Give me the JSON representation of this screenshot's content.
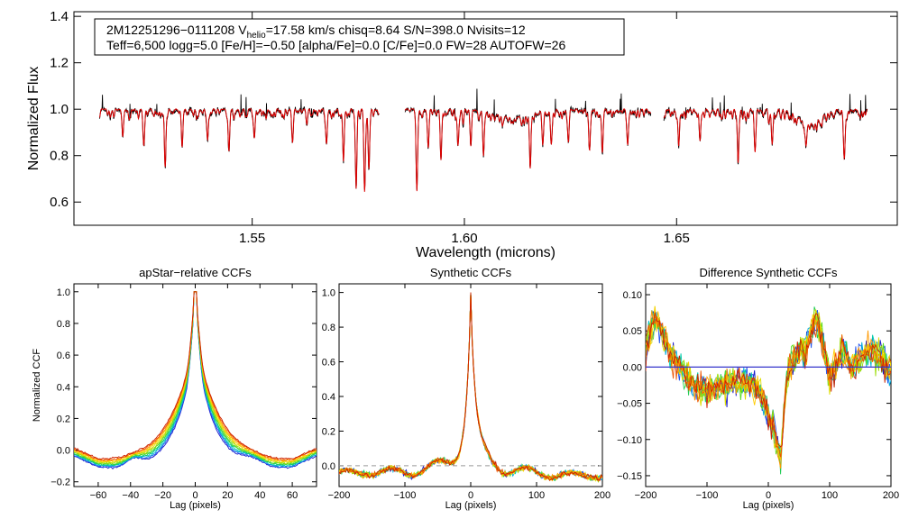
{
  "colors": {
    "observed": "#000000",
    "model": "#dd0000",
    "zero_line": "#3333cc",
    "dashed": "#999999",
    "visit_palette": [
      "#1a1acc",
      "#2255ee",
      "#00aadd",
      "#00ccaa",
      "#22cc55",
      "#55dd22",
      "#99dd00",
      "#dddd00",
      "#ffcc00",
      "#ff9900",
      "#ee5500",
      "#cc2200"
    ]
  },
  "info_box": {
    "object_id": "2M12251296−0111208",
    "vhelio_prefix": "V",
    "vhelio_sub": "helio",
    "line1_rest": "=17.58 km/s  chisq=8.64  S/N=398.0  Nvisits=12",
    "line2": "Teff=6,500 logg=5.0 [Fe/H]=−0.50 [alpha/Fe]=0.0 [C/Fe]=0.0 FW=28 AUTOFW=26"
  },
  "chart_data": [
    {
      "id": "spectrum",
      "type": "line",
      "title": "",
      "xlabel": "Wavelength (microns)",
      "ylabel": "Normalized Flux",
      "xlim": [
        1.508,
        1.702
      ],
      "ylim": [
        0.5,
        1.42
      ],
      "xticks": [
        1.55,
        1.6,
        1.65
      ],
      "xtick_labels": [
        "1.55",
        "1.60",
        "1.65"
      ],
      "yticks": [
        0.6,
        0.8,
        1.0,
        1.2,
        1.4
      ],
      "ytick_labels": [
        "0.6",
        "0.8",
        "1.0",
        "1.2",
        "1.4"
      ],
      "chips": [
        [
          1.514,
          1.58
        ],
        [
          1.586,
          1.644
        ],
        [
          1.647,
          1.695
        ]
      ],
      "absorption_lines": [
        {
          "wl": 1.5195,
          "depth": 0.12
        },
        {
          "wl": 1.5245,
          "depth": 0.14
        },
        {
          "wl": 1.5295,
          "depth": 0.23
        },
        {
          "wl": 1.5335,
          "depth": 0.16
        },
        {
          "wl": 1.5395,
          "depth": 0.12
        },
        {
          "wl": 1.5445,
          "depth": 0.16
        },
        {
          "wl": 1.5505,
          "depth": 0.12
        },
        {
          "wl": 1.5595,
          "depth": 0.14
        },
        {
          "wl": 1.5675,
          "depth": 0.14
        },
        {
          "wl": 1.5715,
          "depth": 0.22
        },
        {
          "wl": 1.5745,
          "depth": 0.3
        },
        {
          "wl": 1.5765,
          "depth": 0.33
        },
        {
          "wl": 1.5775,
          "depth": 0.25
        },
        {
          "wl": 1.5888,
          "depth": 0.35
        },
        {
          "wl": 1.5915,
          "depth": 0.16
        },
        {
          "wl": 1.5945,
          "depth": 0.2
        },
        {
          "wl": 1.5985,
          "depth": 0.15
        },
        {
          "wl": 1.6015,
          "depth": 0.14
        },
        {
          "wl": 1.6045,
          "depth": 0.16
        },
        {
          "wl": 1.6155,
          "depth": 0.2
        },
        {
          "wl": 1.6185,
          "depth": 0.12
        },
        {
          "wl": 1.6205,
          "depth": 0.14
        },
        {
          "wl": 1.6245,
          "depth": 0.12
        },
        {
          "wl": 1.6295,
          "depth": 0.16
        },
        {
          "wl": 1.6325,
          "depth": 0.18
        },
        {
          "wl": 1.6385,
          "depth": 0.14
        },
        {
          "wl": 1.6505,
          "depth": 0.14
        },
        {
          "wl": 1.6555,
          "depth": 0.12
        },
        {
          "wl": 1.6645,
          "depth": 0.22
        },
        {
          "wl": 1.6685,
          "depth": 0.18
        },
        {
          "wl": 1.6725,
          "depth": 0.14
        },
        {
          "wl": 1.6805,
          "depth": 0.1
        },
        {
          "wl": 1.6895,
          "depth": 0.2
        }
      ],
      "broad_features": [
        {
          "wl": 1.6115,
          "depth": 0.035,
          "width": 0.004
        },
        {
          "wl": 1.6815,
          "depth": 0.06,
          "width": 0.0025
        }
      ],
      "series": [
        {
          "name": "Observed spectrum",
          "color": "#000000"
        },
        {
          "name": "Best-fit model",
          "color": "#dd0000"
        }
      ]
    },
    {
      "id": "apstar-ccf",
      "type": "line",
      "title": "apStar−relative CCFs",
      "xlabel": "Lag (pixels)",
      "ylabel": "Normalized CCF",
      "xlim": [
        -75,
        75
      ],
      "ylim": [
        -0.23,
        1.05
      ],
      "xticks": [
        -60,
        -40,
        -20,
        0,
        20,
        40,
        60
      ],
      "xtick_labels": [
        "−60",
        "−40",
        "−20",
        "0",
        "20",
        "40",
        "60"
      ],
      "yticks": [
        -0.2,
        0.0,
        0.2,
        0.4,
        0.6,
        0.8,
        1.0
      ],
      "ytick_labels": [
        "−0.2",
        "0.0",
        "0.2",
        "0.4",
        "0.6",
        "0.8",
        "1.0"
      ],
      "peak": 1.0,
      "visits": 12
    },
    {
      "id": "synthetic-ccf",
      "type": "line",
      "title": "Synthetic CCFs",
      "xlabel": "Lag (pixels)",
      "ylabel": "",
      "xlim": [
        -200,
        200
      ],
      "ylim": [
        -0.12,
        1.05
      ],
      "xticks": [
        -200,
        -100,
        0,
        100,
        200
      ],
      "xtick_labels": [
        "−200",
        "−100",
        "0",
        "100",
        "200"
      ],
      "yticks": [
        0.0,
        0.2,
        0.4,
        0.6,
        0.8,
        1.0
      ],
      "ytick_labels": [
        "0.0",
        "0.2",
        "0.4",
        "0.6",
        "0.8",
        "1.0"
      ],
      "peak": 1.0,
      "visits": 12
    },
    {
      "id": "diff-ccf",
      "type": "line",
      "title": "Difference Synthetic CCFs",
      "xlabel": "Lag (pixels)",
      "ylabel": "",
      "xlim": [
        -200,
        200
      ],
      "ylim": [
        -0.165,
        0.115
      ],
      "xticks": [
        -200,
        -100,
        0,
        100,
        200
      ],
      "xtick_labels": [
        "−200",
        "−100",
        "0",
        "100",
        "200"
      ],
      "yticks": [
        -0.15,
        -0.1,
        -0.05,
        0.0,
        0.05,
        0.1
      ],
      "ytick_labels": [
        "−0.15",
        "−0.10",
        "−0.05",
        "0.00",
        "0.05",
        "0.10"
      ],
      "visits": 12
    }
  ]
}
